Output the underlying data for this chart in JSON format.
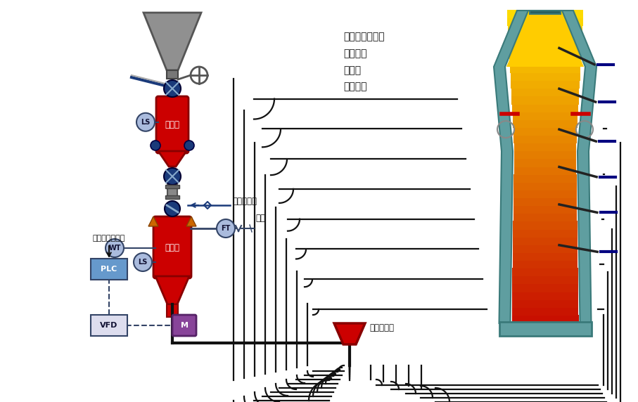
{
  "bg_color": "#ffffff",
  "labels": {
    "shouke_tank": "收料罐",
    "penchui_tank": "喷吹罐",
    "liuhua_gas": "流化加压气",
    "qi_yuan": "气源",
    "guanlu_distributor": "管路分配器",
    "gei_liang": "给料量连续可调",
    "plc": "PLC",
    "vfd": "VFD",
    "ls": "LS",
    "wt": "WT",
    "ft": "FT",
    "m": "M",
    "furnace_text": "循环流化床锅炉\n炼铁高炉\n熔炼炉\n炼钢电炉"
  },
  "colors": {
    "red": "#cc0000",
    "gray_hopper": "#888888",
    "teal": "#5f9ea0",
    "teal_dark": "#3a7a7a",
    "yellow": "#ffcc00",
    "dark_blue": "#1a3a7a",
    "blue_gray": "#aabbdd",
    "blue_gray_edge": "#334466",
    "purple": "#884499",
    "purple_edge": "#552266",
    "plc_blue": "#6699cc",
    "pipe": "#111111",
    "navy": "#000080",
    "orange_valve": "#cc6600"
  }
}
